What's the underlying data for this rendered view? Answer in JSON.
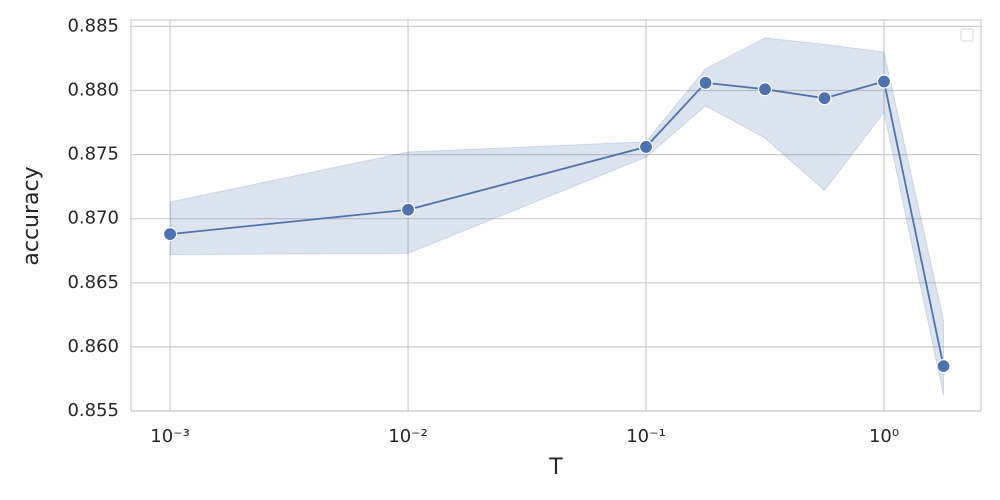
{
  "chart_data": {
    "type": "line",
    "x_label": "T",
    "y_label": "accuracy",
    "xscale": "log",
    "grid": true,
    "x": [
      0.001,
      0.01,
      0.1,
      0.1778,
      0.3162,
      0.5623,
      1,
      1.778
    ],
    "series": [
      {
        "color": "#4c72b0",
        "values": [
          0.8688,
          0.8707,
          0.8756,
          0.8806,
          0.8801,
          0.8794,
          0.8807,
          0.8585
        ],
        "ci_lower": [
          0.8672,
          0.8673,
          0.8748,
          0.8788,
          0.8763,
          0.8722,
          0.8783,
          0.8562
        ],
        "ci_upper": [
          0.8713,
          0.8752,
          0.876,
          0.8817,
          0.8841,
          0.8836,
          0.883,
          0.8621
        ]
      }
    ],
    "xlim": [
      0.000685,
      2.556
    ],
    "ylim": [
      0.855,
      0.8855
    ],
    "xticks": [
      {
        "value": 0.001,
        "label": "10⁻³"
      },
      {
        "value": 0.01,
        "label": "10⁻²"
      },
      {
        "value": 0.1,
        "label": "10⁻¹"
      },
      {
        "value": 1,
        "label": "10⁰"
      }
    ],
    "yticks": [
      {
        "value": 0.855,
        "label": "0.855"
      },
      {
        "value": 0.86,
        "label": "0.860"
      },
      {
        "value": 0.865,
        "label": "0.865"
      },
      {
        "value": 0.87,
        "label": "0.870"
      },
      {
        "value": 0.875,
        "label": "0.875"
      },
      {
        "value": 0.88,
        "label": "0.880"
      },
      {
        "value": 0.885,
        "label": "0.885"
      }
    ]
  }
}
